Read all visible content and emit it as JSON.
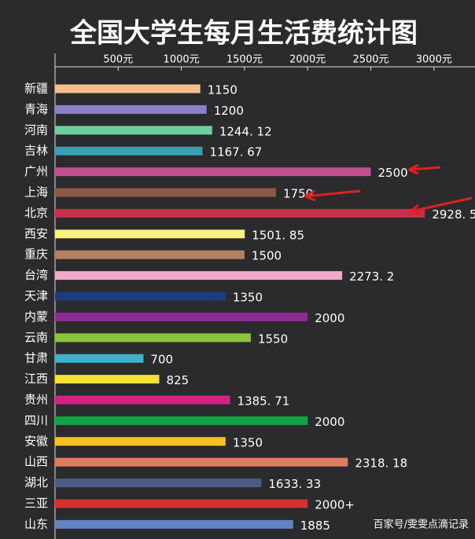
{
  "chart_data": {
    "type": "bar",
    "orientation": "horizontal",
    "title": "全国大学生每月生活费统计图",
    "categories": [
      "新疆",
      "青海",
      "河南",
      "吉林",
      "广州",
      "上海",
      "北京",
      "西安",
      "重庆",
      "台湾",
      "天津",
      "内蒙",
      "云南",
      "甘肃",
      "江西",
      "贵州",
      "四川",
      "安徽",
      "山西",
      "湖北",
      "三亚",
      "山东"
    ],
    "values": [
      1150,
      1200,
      1244.12,
      1167.67,
      2500,
      1750,
      2928.5,
      1501.85,
      1500,
      2273.2,
      1350,
      2000,
      1550,
      700,
      825,
      1385.71,
      2000,
      1350,
      2318.18,
      1633.33,
      2000,
      1885
    ],
    "value_labels": [
      "1150",
      "1200",
      "1244. 12",
      "1167. 67",
      "2500",
      "1750",
      "2928. 5",
      "1501. 85",
      "1500",
      "2273. 2",
      "1350",
      "2000",
      "1550",
      "700",
      "825",
      "1385. 71",
      "2000",
      "1350",
      "2318. 18",
      "1633. 33",
      "2000+",
      "1885"
    ],
    "colors": [
      "#f3c08c",
      "#8c80c8",
      "#6fcf9c",
      "#3a9fb2",
      "#c2508f",
      "#8b5a44",
      "#c2304c",
      "#f6f07c",
      "#b48262",
      "#f2a8c8",
      "#1c3c7c",
      "#8c2a92",
      "#8cc43c",
      "#42b0c8",
      "#f6e032",
      "#d22282",
      "#12a242",
      "#f6c222",
      "#e27a62",
      "#4c5c82",
      "#d23232",
      "#6282c2"
    ],
    "xlim": [
      0,
      3300
    ],
    "xticks": [
      {
        "value": 500,
        "label": "500元"
      },
      {
        "value": 1000,
        "label": "1000元"
      },
      {
        "value": 1500,
        "label": "1500元"
      },
      {
        "value": 2000,
        "label": "2000元"
      },
      {
        "value": 2500,
        "label": "2500元"
      },
      {
        "value": 3000,
        "label": "3000元"
      }
    ]
  },
  "watermark": "百家号/雯雯点滴记录"
}
